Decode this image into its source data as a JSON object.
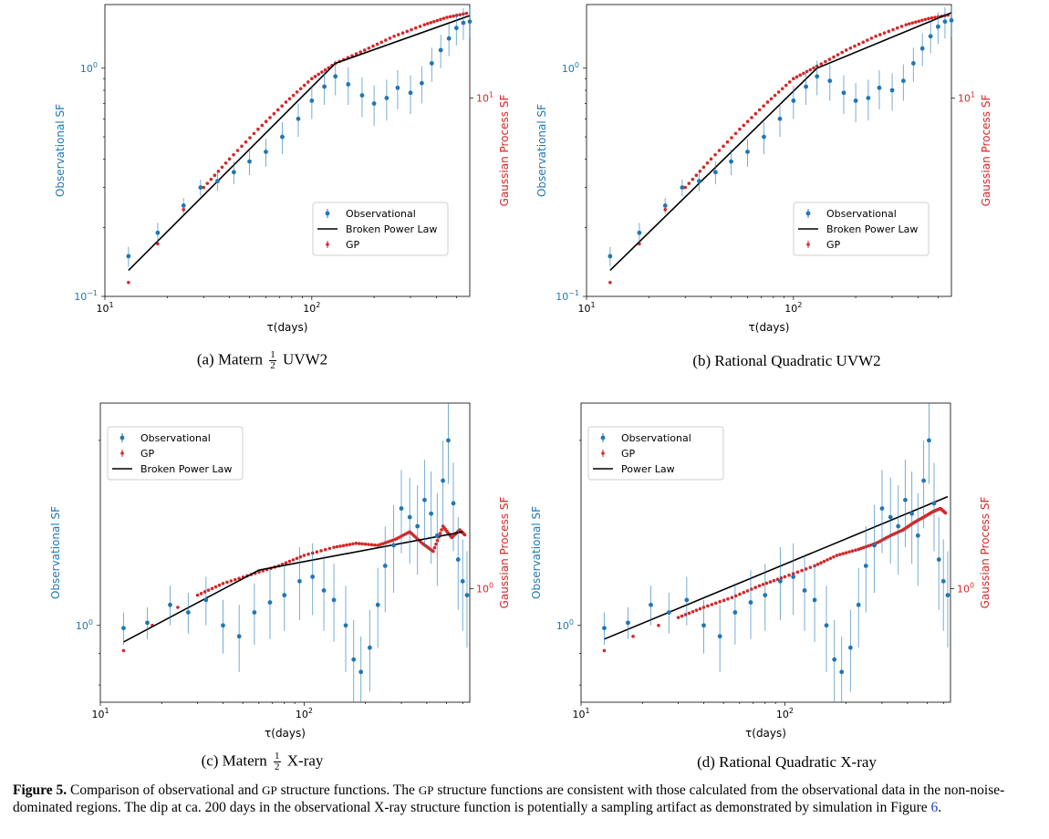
{
  "caption": {
    "label": "Figure 5.",
    "text_1": "Comparison of observational and",
    "gp_1": "GP",
    "text_2": "structure functions. The",
    "gp_2": "GP",
    "text_3": "structure functions are consistent with those calculated from the observational data in the non-noise-dominated regions. The dip at ca. 200 days in the observational X-ray structure function is potentially a sampling artifact as demonstrated by simulation in Figure",
    "ref": "6",
    "end": "."
  },
  "colors": {
    "observational": "#1f77b4",
    "gp": "#d62728",
    "model": "#000000"
  },
  "panels": [
    {
      "id": "a",
      "sub_label": "(a) Matern",
      "frac_num": "1",
      "frac_den": "2",
      "sub_suffix": "UVW2",
      "chart_data": {
        "type": "scatter",
        "xscale": "log",
        "yscale": "log",
        "xlim": [
          10,
          580
        ],
        "ylim": [
          0.1,
          1.9
        ],
        "xlabel": "τ(days)",
        "ylabel_left": "Observational SF",
        "ylabel_right": "Gaussian Process SF",
        "x_ticks": [
          {
            "v": 10,
            "b": "10",
            "e": "1"
          },
          {
            "v": 100,
            "b": "10",
            "e": "2"
          }
        ],
        "y_ticks": [
          {
            "v": 0.1,
            "b": "10",
            "e": "−1"
          },
          {
            "v": 1,
            "b": "10",
            "e": "0"
          }
        ],
        "right_ticks": [
          {
            "frac": 0.32,
            "b": "10",
            "e": "1"
          }
        ],
        "legend": {
          "position": "lower-right",
          "items": [
            "Observational",
            "Broken Power Law",
            "GP"
          ],
          "order": [
            "obs",
            "model",
            "gp"
          ]
        },
        "model": {
          "name": "Broken Power Law",
          "x": [
            13,
            130,
            580
          ],
          "y": [
            0.13,
            1.05,
            1.7
          ]
        },
        "gp_curve": {
          "x": [
            13,
            18,
            24,
            30,
            40,
            55,
            75,
            100,
            130,
            180,
            250,
            350,
            450,
            580
          ],
          "y": [
            0.115,
            0.17,
            0.24,
            0.3,
            0.4,
            0.54,
            0.71,
            0.9,
            1.05,
            1.2,
            1.38,
            1.55,
            1.67,
            1.75
          ]
        },
        "observational": {
          "x": [
            13,
            18,
            24,
            29,
            35,
            42,
            50,
            60,
            72,
            86,
            100,
            115,
            130,
            150,
            175,
            200,
            230,
            260,
            300,
            340,
            380,
            420,
            460,
            500,
            540,
            580
          ],
          "y": [
            0.15,
            0.19,
            0.25,
            0.3,
            0.32,
            0.35,
            0.39,
            0.43,
            0.5,
            0.6,
            0.72,
            0.83,
            0.92,
            0.85,
            0.76,
            0.7,
            0.74,
            0.82,
            0.78,
            0.86,
            1.05,
            1.2,
            1.35,
            1.5,
            1.58,
            1.6
          ],
          "err": [
            0.015,
            0.02,
            0.02,
            0.025,
            0.03,
            0.04,
            0.05,
            0.06,
            0.08,
            0.1,
            0.12,
            0.14,
            0.16,
            0.16,
            0.15,
            0.14,
            0.15,
            0.16,
            0.15,
            0.16,
            0.18,
            0.2,
            0.22,
            0.24,
            0.25,
            0.25
          ]
        }
      }
    },
    {
      "id": "b",
      "sub_label": "(b) Rational Quadratic UVW2",
      "chart_data": {
        "type": "scatter",
        "xscale": "log",
        "yscale": "log",
        "xlim": [
          10,
          580
        ],
        "ylim": [
          0.1,
          1.9
        ],
        "xlabel": "τ(days)",
        "ylabel_left": "Observational SF",
        "ylabel_right": "Gaussian Process SF",
        "x_ticks": [
          {
            "v": 10,
            "b": "10",
            "e": "1"
          },
          {
            "v": 100,
            "b": "10",
            "e": "2"
          }
        ],
        "y_ticks": [
          {
            "v": 0.1,
            "b": "10",
            "e": "−1"
          },
          {
            "v": 1,
            "b": "10",
            "e": "0"
          }
        ],
        "right_ticks": [
          {
            "frac": 0.32,
            "b": "10",
            "e": "1"
          }
        ],
        "legend": {
          "position": "lower-right",
          "items": [
            "Observational",
            "Broken Power Law",
            "GP"
          ],
          "order": [
            "obs",
            "model",
            "gp"
          ]
        },
        "model": {
          "name": "Broken Power Law",
          "x": [
            13,
            130,
            580
          ],
          "y": [
            0.13,
            1.0,
            1.75
          ]
        },
        "gp_curve": {
          "x": [
            13,
            18,
            24,
            30,
            40,
            55,
            75,
            100,
            130,
            180,
            250,
            350,
            450,
            580
          ],
          "y": [
            0.115,
            0.17,
            0.24,
            0.3,
            0.4,
            0.54,
            0.71,
            0.9,
            1.02,
            1.2,
            1.38,
            1.55,
            1.65,
            1.72
          ]
        },
        "observational": {
          "x": [
            13,
            18,
            24,
            29,
            35,
            42,
            50,
            60,
            72,
            86,
            100,
            115,
            130,
            150,
            175,
            200,
            230,
            260,
            300,
            340,
            380,
            420,
            460,
            500,
            540,
            580
          ],
          "y": [
            0.15,
            0.19,
            0.25,
            0.3,
            0.32,
            0.35,
            0.39,
            0.43,
            0.5,
            0.6,
            0.72,
            0.83,
            0.92,
            0.88,
            0.78,
            0.72,
            0.74,
            0.82,
            0.8,
            0.88,
            1.05,
            1.22,
            1.38,
            1.52,
            1.6,
            1.62
          ],
          "err": [
            0.015,
            0.02,
            0.02,
            0.025,
            0.03,
            0.04,
            0.05,
            0.06,
            0.08,
            0.1,
            0.12,
            0.14,
            0.16,
            0.16,
            0.15,
            0.14,
            0.15,
            0.16,
            0.15,
            0.16,
            0.18,
            0.2,
            0.22,
            0.24,
            0.25,
            0.25
          ]
        }
      }
    },
    {
      "id": "c",
      "sub_label": "(c) Matern",
      "frac_num": "1",
      "frac_den": "2",
      "sub_suffix": "X-ray",
      "chart_data": {
        "type": "scatter",
        "xscale": "log",
        "yscale": "log",
        "xlim": [
          10,
          650
        ],
        "ylim": [
          0.75,
          2.3
        ],
        "xlabel": "τ(days)",
        "ylabel_left": "Observational SF",
        "ylabel_right": "Gaussian Process SF",
        "x_ticks": [
          {
            "v": 10,
            "b": "10",
            "e": "1"
          },
          {
            "v": 100,
            "b": "10",
            "e": "2"
          }
        ],
        "y_ticks": [
          {
            "v": 1,
            "b": "10",
            "e": "0"
          }
        ],
        "right_ticks": [
          {
            "frac": 0.62,
            "b": "10",
            "e": "0"
          }
        ],
        "legend": {
          "position": "top-left",
          "items": [
            "Observational",
            "GP",
            "Broken Power Law"
          ],
          "order": [
            "obs",
            "gp",
            "model"
          ]
        },
        "model": {
          "name": "Broken Power Law",
          "x": [
            13,
            60,
            600
          ],
          "y": [
            0.94,
            1.23,
            1.42
          ]
        },
        "gp_curve": {
          "x": [
            13,
            18,
            24,
            30,
            40,
            55,
            75,
            100,
            140,
            180,
            230,
            280,
            330,
            380,
            430,
            480,
            530,
            580,
            620
          ],
          "y": [
            0.91,
            1.0,
            1.07,
            1.12,
            1.17,
            1.21,
            1.25,
            1.3,
            1.34,
            1.36,
            1.35,
            1.38,
            1.42,
            1.36,
            1.32,
            1.45,
            1.39,
            1.43,
            1.4
          ]
        },
        "observational": {
          "x": [
            13,
            17,
            22,
            27,
            33,
            40,
            48,
            57,
            68,
            80,
            95,
            110,
            125,
            140,
            160,
            175,
            190,
            210,
            230,
            250,
            275,
            300,
            330,
            360,
            390,
            420,
            450,
            480,
            510,
            540,
            570,
            600,
            630
          ],
          "y": [
            0.99,
            1.01,
            1.08,
            1.05,
            1.1,
            1.0,
            0.96,
            1.05,
            1.09,
            1.12,
            1.18,
            1.2,
            1.14,
            1.1,
            1.0,
            0.88,
            0.84,
            0.92,
            1.08,
            1.25,
            1.35,
            1.55,
            1.5,
            1.45,
            1.6,
            1.52,
            1.4,
            1.72,
            2.0,
            1.58,
            1.28,
            1.18,
            1.12
          ],
          "err": [
            0.06,
            0.06,
            0.08,
            0.08,
            0.1,
            0.1,
            0.12,
            0.12,
            0.14,
            0.14,
            0.16,
            0.16,
            0.16,
            0.16,
            0.16,
            0.14,
            0.12,
            0.14,
            0.16,
            0.2,
            0.22,
            0.24,
            0.24,
            0.24,
            0.26,
            0.26,
            0.24,
            0.28,
            0.3,
            0.26,
            0.22,
            0.2,
            0.2
          ]
        }
      }
    },
    {
      "id": "d",
      "sub_label": "(d) Rational Quadratic X-ray",
      "chart_data": {
        "type": "scatter",
        "xscale": "log",
        "yscale": "log",
        "xlim": [
          10,
          650
        ],
        "ylim": [
          0.75,
          2.3
        ],
        "xlabel": "τ(days)",
        "ylabel_left": "Observational SF",
        "ylabel_right": "Gaussian Process SF",
        "x_ticks": [
          {
            "v": 10,
            "b": "10",
            "e": "1"
          },
          {
            "v": 100,
            "b": "10",
            "e": "2"
          }
        ],
        "y_ticks": [
          {
            "v": 1,
            "b": "10",
            "e": "0"
          }
        ],
        "right_ticks": [
          {
            "frac": 0.62,
            "b": "10",
            "e": "0"
          }
        ],
        "legend": {
          "position": "top-left",
          "items": [
            "Observational",
            "GP",
            "Power Law"
          ],
          "order": [
            "obs",
            "gp",
            "model"
          ]
        },
        "model": {
          "name": "Power Law",
          "x": [
            13,
            630
          ],
          "y": [
            0.95,
            1.62
          ]
        },
        "gp_curve": {
          "x": [
            13,
            18,
            24,
            30,
            40,
            55,
            75,
            100,
            140,
            180,
            230,
            280,
            330,
            380,
            430,
            480,
            530,
            580,
            620
          ],
          "y": [
            0.91,
            0.96,
            1.0,
            1.03,
            1.07,
            1.11,
            1.16,
            1.2,
            1.25,
            1.3,
            1.33,
            1.36,
            1.4,
            1.43,
            1.47,
            1.5,
            1.53,
            1.55,
            1.52
          ]
        },
        "observational": {
          "x": [
            13,
            17,
            22,
            27,
            33,
            40,
            48,
            57,
            68,
            80,
            95,
            110,
            125,
            140,
            160,
            175,
            190,
            210,
            230,
            250,
            275,
            300,
            330,
            360,
            390,
            420,
            450,
            480,
            510,
            540,
            570,
            600,
            630
          ],
          "y": [
            0.99,
            1.01,
            1.08,
            1.05,
            1.1,
            1.0,
            0.96,
            1.05,
            1.09,
            1.12,
            1.18,
            1.2,
            1.14,
            1.1,
            1.0,
            0.88,
            0.84,
            0.92,
            1.08,
            1.25,
            1.35,
            1.55,
            1.5,
            1.45,
            1.6,
            1.52,
            1.4,
            1.72,
            2.0,
            1.58,
            1.28,
            1.18,
            1.12
          ],
          "err": [
            0.06,
            0.06,
            0.08,
            0.08,
            0.1,
            0.1,
            0.12,
            0.12,
            0.14,
            0.14,
            0.16,
            0.16,
            0.16,
            0.16,
            0.16,
            0.14,
            0.12,
            0.14,
            0.16,
            0.2,
            0.22,
            0.24,
            0.24,
            0.24,
            0.26,
            0.26,
            0.24,
            0.28,
            0.3,
            0.26,
            0.22,
            0.2,
            0.2
          ]
        }
      }
    }
  ]
}
